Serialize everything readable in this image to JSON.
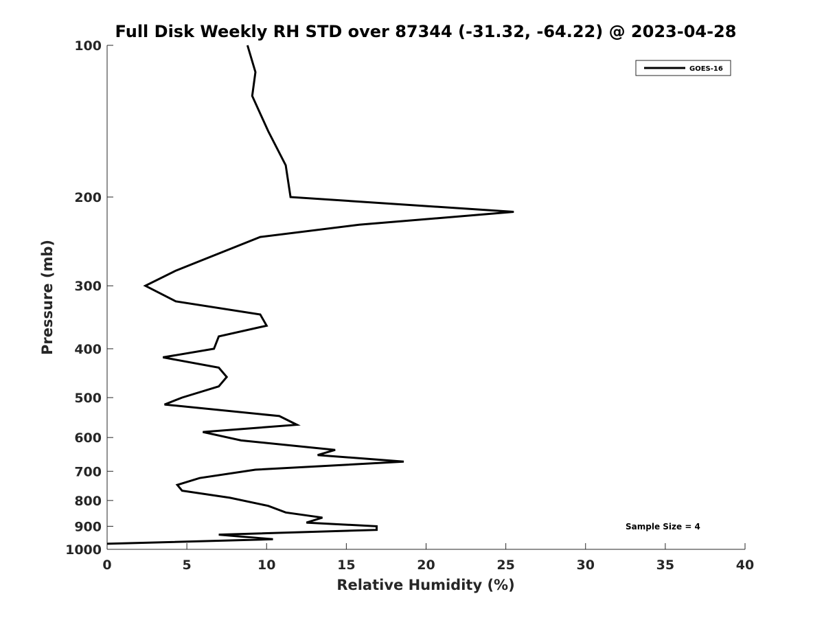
{
  "chart_data": {
    "type": "line",
    "title": "Full Disk Weekly RH STD over 87344 (-31.32, -64.22) @ 2023-04-28",
    "xlabel": "Relative Humidity (%)",
    "ylabel": "Pressure (mb)",
    "xlim": [
      0,
      40
    ],
    "ylim": [
      100,
      1000
    ],
    "yscale": "log",
    "y_inverted": true,
    "xticks": [
      0,
      5,
      10,
      15,
      20,
      25,
      30,
      35,
      40
    ],
    "xtick_labels": [
      "0",
      "5",
      "10",
      "15",
      "20",
      "25",
      "30",
      "35",
      "40"
    ],
    "yticks": [
      100,
      200,
      300,
      400,
      500,
      600,
      700,
      800,
      900,
      1000
    ],
    "ytick_labels": [
      "100",
      "200",
      "300",
      "400",
      "500",
      "600",
      "700",
      "800",
      "900",
      "1000"
    ],
    "grid": false,
    "legend": {
      "position": "top-right",
      "entries": [
        "GOES-16"
      ]
    },
    "annotation": "Sample Size = 4",
    "series": [
      {
        "name": "GOES-16",
        "color": "#000000",
        "x": [
          8.8,
          9.3,
          9.1,
          10.1,
          11.2,
          11.5,
          25.5,
          15.8,
          9.6,
          4.3,
          2.4,
          4.3,
          9.6,
          10.0,
          7.0,
          6.7,
          3.5,
          7.0,
          7.5,
          7.0,
          4.7,
          3.6,
          10.8,
          11.9,
          6.0,
          8.4,
          14.3,
          13.2,
          18.6,
          9.3,
          5.8,
          4.4,
          4.7,
          7.7,
          10.1,
          11.2,
          13.5,
          12.5,
          16.9,
          16.9,
          7.0,
          10.4,
          0.0
        ],
        "y": [
          100,
          113,
          126,
          148,
          173,
          200,
          214,
          227,
          240,
          280,
          300,
          322,
          342,
          360,
          378,
          400,
          416,
          436,
          455,
          475,
          500,
          516,
          544,
          566,
          585,
          608,
          635,
          650,
          670,
          695,
          722,
          745,
          765,
          790,
          820,
          845,
          865,
          885,
          900,
          915,
          935,
          955,
          975
        ]
      }
    ]
  }
}
